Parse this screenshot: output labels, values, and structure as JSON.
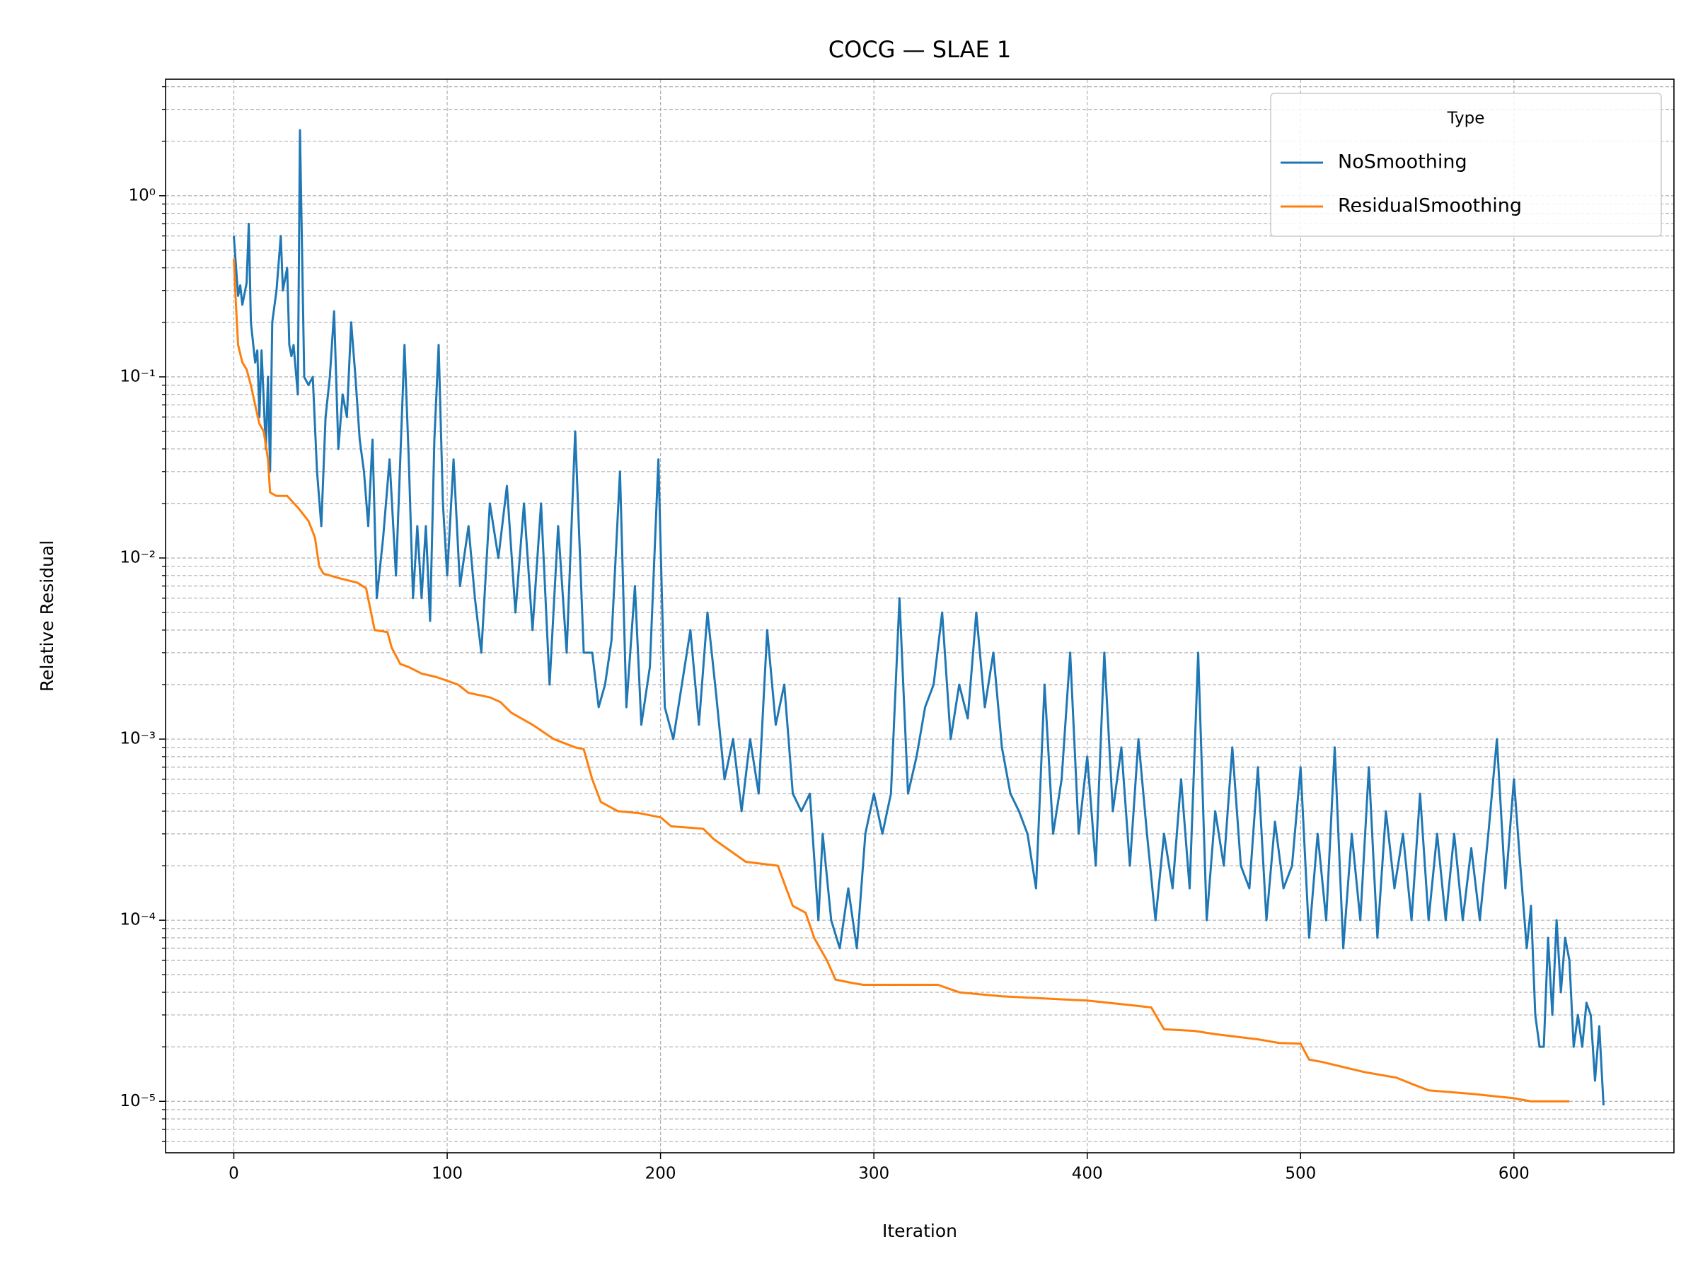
{
  "chart_data": {
    "type": "line",
    "title": "COCG — SLAE 1",
    "x_label": "Iteration",
    "y_label": "Relative Residual",
    "log_y": true,
    "grid": true,
    "minor_grid": true,
    "legend_title": "Type",
    "legend_position": "upper right",
    "xlim": [
      -32,
      675
    ],
    "xticks": [
      0,
      100,
      200,
      300,
      400,
      500,
      600
    ],
    "ylim": [
      5.2e-06,
      4.4
    ],
    "yticks": [
      {
        "value": 1e-05,
        "label": "10⁻⁵"
      },
      {
        "value": 0.0001,
        "label": "10⁻⁴"
      },
      {
        "value": 0.001,
        "label": "10⁻³"
      },
      {
        "value": 0.01,
        "label": "10⁻²"
      },
      {
        "value": 0.1,
        "label": "10⁻¹"
      },
      {
        "value": 1,
        "label": "10⁰"
      }
    ],
    "series": [
      {
        "name": "NoSmoothing",
        "color": "#1f77b4",
        "x": [
          0,
          2,
          3,
          4,
          6,
          7,
          8,
          10,
          11,
          12,
          13,
          15,
          16,
          17,
          18,
          20,
          22,
          23,
          25,
          26,
          27,
          28,
          30,
          31,
          33,
          35,
          37,
          39,
          41,
          43,
          45,
          47,
          49,
          51,
          53,
          55,
          57,
          59,
          61,
          63,
          65,
          67,
          70,
          73,
          76,
          80,
          82,
          84,
          86,
          88,
          90,
          92,
          94,
          96,
          98,
          100,
          103,
          106,
          110,
          113,
          116,
          120,
          124,
          128,
          132,
          136,
          140,
          144,
          148,
          152,
          156,
          160,
          164,
          168,
          171,
          174,
          177,
          181,
          184,
          188,
          191,
          195,
          199,
          202,
          206,
          210,
          214,
          218,
          222,
          226,
          230,
          234,
          238,
          242,
          246,
          250,
          254,
          258,
          262,
          266,
          270,
          274,
          276,
          280,
          284,
          288,
          292,
          296,
          300,
          304,
          308,
          312,
          316,
          320,
          324,
          328,
          332,
          336,
          340,
          344,
          348,
          352,
          356,
          360,
          364,
          368,
          372,
          376,
          380,
          384,
          388,
          392,
          396,
          400,
          404,
          408,
          412,
          416,
          420,
          424,
          428,
          432,
          436,
          440,
          444,
          448,
          452,
          456,
          460,
          464,
          468,
          472,
          476,
          480,
          484,
          488,
          492,
          496,
          500,
          504,
          508,
          512,
          516,
          520,
          524,
          528,
          532,
          536,
          540,
          544,
          548,
          552,
          556,
          560,
          564,
          568,
          572,
          576,
          580,
          584,
          588,
          592,
          596,
          600,
          603,
          606,
          608,
          610,
          612,
          614,
          616,
          618,
          620,
          622,
          624,
          626,
          628,
          630,
          632,
          634,
          636,
          638,
          640,
          642
        ],
        "values": [
          0.6,
          0.28,
          0.32,
          0.25,
          0.33,
          0.7,
          0.2,
          0.12,
          0.14,
          0.06,
          0.14,
          0.04,
          0.1,
          0.03,
          0.2,
          0.3,
          0.6,
          0.3,
          0.4,
          0.15,
          0.13,
          0.15,
          0.08,
          2.3,
          0.1,
          0.09,
          0.1,
          0.03,
          0.015,
          0.06,
          0.1,
          0.23,
          0.04,
          0.08,
          0.06,
          0.2,
          0.1,
          0.045,
          0.03,
          0.015,
          0.045,
          0.006,
          0.013,
          0.035,
          0.008,
          0.15,
          0.035,
          0.006,
          0.015,
          0.006,
          0.015,
          0.0045,
          0.045,
          0.15,
          0.02,
          0.008,
          0.035,
          0.007,
          0.015,
          0.006,
          0.003,
          0.02,
          0.01,
          0.025,
          0.005,
          0.02,
          0.004,
          0.02,
          0.002,
          0.015,
          0.003,
          0.05,
          0.003,
          0.003,
          0.0015,
          0.002,
          0.0035,
          0.03,
          0.0015,
          0.007,
          0.0012,
          0.0025,
          0.035,
          0.0015,
          0.001,
          0.002,
          0.004,
          0.0012,
          0.005,
          0.0018,
          0.0006,
          0.001,
          0.0004,
          0.001,
          0.0005,
          0.004,
          0.0012,
          0.002,
          0.0005,
          0.0004,
          0.0005,
          0.0001,
          0.0003,
          0.0001,
          7e-05,
          0.00015,
          7e-05,
          0.0003,
          0.0005,
          0.0003,
          0.0005,
          0.006,
          0.0005,
          0.0008,
          0.0015,
          0.002,
          0.005,
          0.001,
          0.002,
          0.0013,
          0.005,
          0.0015,
          0.003,
          0.0009,
          0.0005,
          0.0004,
          0.0003,
          0.00015,
          0.002,
          0.0003,
          0.0006,
          0.003,
          0.0003,
          0.0008,
          0.0002,
          0.003,
          0.0004,
          0.0009,
          0.0002,
          0.001,
          0.0003,
          0.0001,
          0.0003,
          0.00015,
          0.0006,
          0.00015,
          0.003,
          0.0001,
          0.0004,
          0.0002,
          0.0009,
          0.0002,
          0.00015,
          0.0007,
          0.0001,
          0.00035,
          0.00015,
          0.0002,
          0.0007,
          8e-05,
          0.0003,
          0.0001,
          0.0009,
          7e-05,
          0.0003,
          0.0001,
          0.0007,
          8e-05,
          0.0004,
          0.00015,
          0.0003,
          0.0001,
          0.0005,
          0.0001,
          0.0003,
          0.0001,
          0.0003,
          0.0001,
          0.00025,
          0.0001,
          0.0003,
          0.001,
          0.00015,
          0.0006,
          0.0002,
          7e-05,
          0.00012,
          3e-05,
          2e-05,
          2e-05,
          8e-05,
          3e-05,
          0.0001,
          4e-05,
          8e-05,
          6e-05,
          2e-05,
          3e-05,
          2e-05,
          3.5e-05,
          3e-05,
          1.3e-05,
          2.6e-05,
          9.5e-06
        ]
      },
      {
        "name": "ResidualSmoothing",
        "color": "#ff7f0e",
        "x": [
          0,
          1,
          2,
          4,
          6,
          8,
          10,
          12,
          14,
          16,
          17,
          20,
          25,
          30,
          35,
          38,
          40,
          42,
          50,
          58,
          62,
          66,
          72,
          74,
          78,
          82,
          88,
          95,
          100,
          105,
          110,
          120,
          125,
          130,
          140,
          150,
          160,
          164,
          168,
          172,
          180,
          190,
          200,
          205,
          220,
          225,
          240,
          255,
          258,
          262,
          268,
          272,
          278,
          282,
          290,
          295,
          330,
          340,
          360,
          400,
          420,
          430,
          436,
          450,
          460,
          480,
          490,
          500,
          504,
          510,
          530,
          545,
          552,
          560,
          580,
          600,
          608,
          626
        ],
        "values": [
          0.45,
          0.25,
          0.15,
          0.12,
          0.11,
          0.09,
          0.07,
          0.055,
          0.05,
          0.035,
          0.023,
          0.022,
          0.022,
          0.019,
          0.016,
          0.013,
          0.009,
          0.0082,
          0.0077,
          0.0073,
          0.0068,
          0.004,
          0.0039,
          0.0032,
          0.0026,
          0.0025,
          0.0023,
          0.0022,
          0.0021,
          0.002,
          0.0018,
          0.0017,
          0.0016,
          0.0014,
          0.0012,
          0.001,
          0.0009,
          0.00088,
          0.0006,
          0.00045,
          0.0004,
          0.00039,
          0.00037,
          0.00033,
          0.00032,
          0.00028,
          0.00021,
          0.0002,
          0.00016,
          0.00012,
          0.00011,
          8e-05,
          6e-05,
          4.7e-05,
          4.5e-05,
          4.4e-05,
          4.4e-05,
          4e-05,
          3.8e-05,
          3.6e-05,
          3.4e-05,
          3.3e-05,
          2.5e-05,
          2.45e-05,
          2.35e-05,
          2.2e-05,
          2.1e-05,
          2.08e-05,
          1.7e-05,
          1.65e-05,
          1.45e-05,
          1.35e-05,
          1.25e-05,
          1.15e-05,
          1.1e-05,
          1.04e-05,
          1e-05,
          1e-05
        ]
      }
    ]
  }
}
